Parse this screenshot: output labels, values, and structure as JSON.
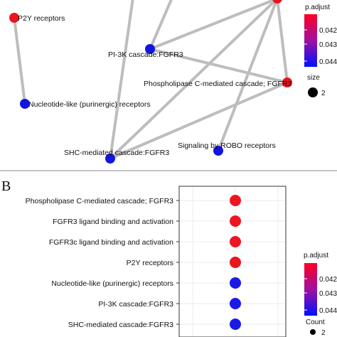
{
  "chart_data": [
    {
      "type": "network",
      "panel": "",
      "nodes": [
        {
          "id": "p2y",
          "label": "P2Y receptors",
          "color": "#e8141e"
        },
        {
          "id": "top_red",
          "label": "",
          "color": "#e8141e"
        },
        {
          "id": "pi3k",
          "label": "PI-3K cascade:FGFR3",
          "color": "#1414e0"
        },
        {
          "id": "plc",
          "label": "Phospholipase C-mediated cascade; FGFR3",
          "color": "#e8141e"
        },
        {
          "id": "nuc",
          "label": "Nucleotide-like (purinergic) receptors",
          "color": "#1414e0"
        },
        {
          "id": "robo",
          "label": "Signaling by ROBO receptors",
          "color": "#1414e0"
        },
        {
          "id": "shc",
          "label": "SHC-mediated cascade:FGFR3",
          "color": "#1414e0"
        }
      ],
      "edges": [
        [
          "p2y",
          "nuc"
        ],
        [
          "pi3k",
          "top_red"
        ],
        [
          "pi3k",
          "plc"
        ],
        [
          "top_red",
          "plc"
        ],
        [
          "shc",
          "top_red"
        ],
        [
          "shc",
          "plc"
        ],
        [
          "robo",
          "top_red"
        ]
      ],
      "legend": {
        "color_title": "p.adjust",
        "color_ticks": [
          "0.042",
          "0.043",
          "0.044"
        ],
        "size_title": "size",
        "size_ticks": [
          "2"
        ]
      }
    },
    {
      "type": "dot",
      "panel": "B",
      "categories": [
        "Phospholipase C-mediated cascade; FGFR3",
        "FGFR3 ligand binding and activation",
        "FGFR3c ligand binding and activation",
        "P2Y receptors",
        "Nucleotide-like (purinergic) receptors",
        "PI-3K cascade:FGFR3",
        "SHC-mediated cascade:FGFR3"
      ],
      "point_colors": [
        "#ee1520",
        "#ee1520",
        "#ee1520",
        "#e8141e",
        "#1a1ae8",
        "#1a1ae8",
        "#1a1ae8"
      ],
      "legend": {
        "color_title": "p.adjust",
        "color_ticks": [
          "0.042",
          "0.043",
          "0.044"
        ],
        "size_title": "Count",
        "size_ticks": [
          "2"
        ]
      }
    }
  ]
}
